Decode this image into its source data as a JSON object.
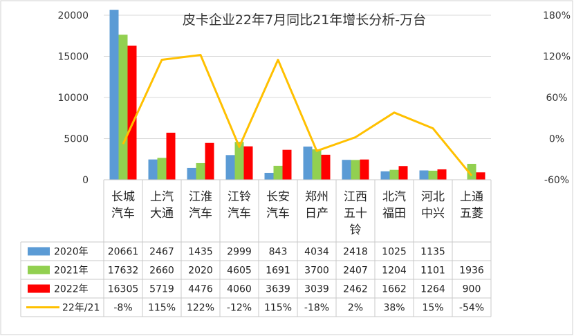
{
  "chart_data": {
    "type": "bar",
    "title": "皮卡企业22年7月同比21年增长分析-万台",
    "categories": [
      [
        "长城",
        "汽车"
      ],
      [
        "上汽",
        "大通"
      ],
      [
        "江淮",
        "汽车"
      ],
      [
        "江铃",
        "汽车"
      ],
      [
        "长安",
        "汽车"
      ],
      [
        "郑州",
        "日产"
      ],
      [
        "江西",
        "五十",
        "铃"
      ],
      [
        "北汽",
        "福田"
      ],
      [
        "河北",
        "中兴"
      ],
      [
        "上通",
        "五菱"
      ]
    ],
    "series": [
      {
        "name": "2020年",
        "type": "bar",
        "axis": "left",
        "color": "#5b9bd5",
        "values": [
          20661,
          2467,
          1435,
          2999,
          843,
          4034,
          2418,
          1025,
          1135,
          null
        ],
        "labels": [
          "20661",
          "2467",
          "1435",
          "2999",
          "843",
          "4034",
          "2418",
          "1025",
          "1135",
          ""
        ]
      },
      {
        "name": "2021年",
        "type": "bar",
        "axis": "left",
        "color": "#92d050",
        "values": [
          17632,
          2660,
          2020,
          4605,
          1691,
          3700,
          2407,
          1204,
          1101,
          1936
        ],
        "labels": [
          "17632",
          "2660",
          "2020",
          "4605",
          "1691",
          "3700",
          "2407",
          "1204",
          "1101",
          "1936"
        ]
      },
      {
        "name": "2022年",
        "type": "bar",
        "axis": "left",
        "color": "#ff0000",
        "values": [
          16305,
          5719,
          4476,
          4060,
          3639,
          3039,
          2462,
          1662,
          1264,
          900
        ],
        "labels": [
          "16305",
          "5719",
          "4476",
          "4060",
          "3639",
          "3039",
          "2462",
          "1662",
          "1264",
          "900"
        ]
      },
      {
        "name": "22年/21",
        "type": "line",
        "axis": "right",
        "color": "#ffc000",
        "values": [
          -8,
          115,
          122,
          -12,
          115,
          -18,
          2,
          38,
          15,
          -54
        ],
        "labels": [
          "-8%",
          "115%",
          "122%",
          "-12%",
          "115%",
          "-18%",
          "2%",
          "38%",
          "15%",
          "-54%"
        ]
      }
    ],
    "left_axis": {
      "min": 0,
      "max": 20000,
      "ticks": [
        "0",
        "5000",
        "10000",
        "15000",
        "20000"
      ]
    },
    "right_axis": {
      "min": -60,
      "max": 180,
      "ticks": [
        "-60%",
        "0%",
        "60%",
        "120%",
        "180%"
      ]
    },
    "grid": true,
    "legend": "data-table"
  }
}
